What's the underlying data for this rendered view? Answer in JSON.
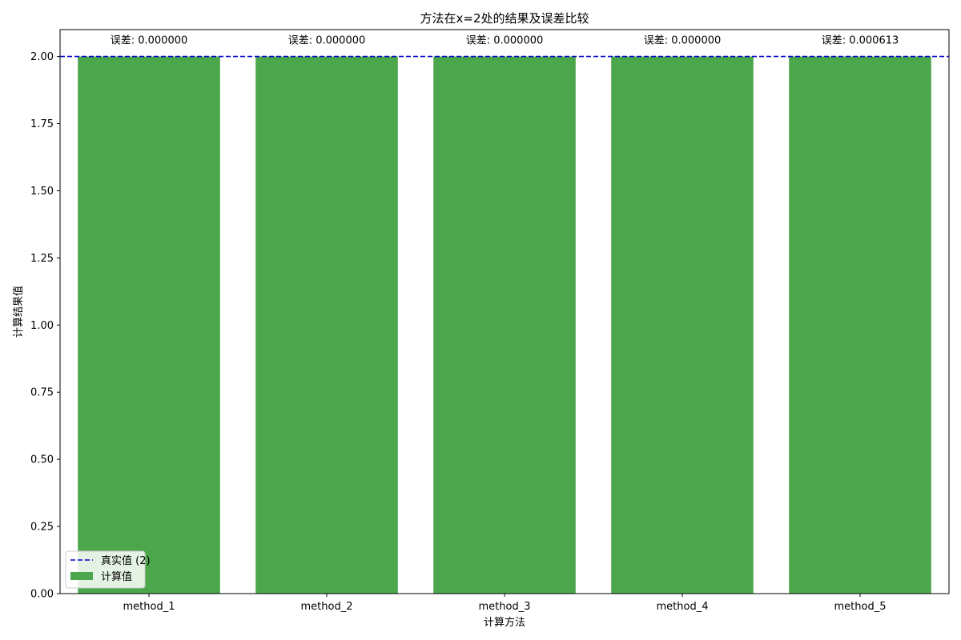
{
  "chart_data": {
    "type": "bar",
    "title": "方法在x=2处的结果及误差比较",
    "xlabel": "计算方法",
    "ylabel": "计算结果值",
    "categories": [
      "method_1",
      "method_2",
      "method_3",
      "method_4",
      "method_5"
    ],
    "values": [
      2.0,
      2.0,
      2.0,
      2.0,
      2.0
    ],
    "data_labels": [
      "误差: 0.000000",
      "误差: 0.000000",
      "误差: 0.000000",
      "误差: 0.000000",
      "误差: 0.000613"
    ],
    "ylim": [
      0,
      2.1
    ],
    "yticks": [
      "0.00",
      "0.25",
      "0.50",
      "0.75",
      "1.00",
      "1.25",
      "1.50",
      "1.75",
      "2.00"
    ],
    "reference_line": {
      "value": 2,
      "label": "真实值 (2)",
      "color": "#0000cc",
      "style": "dashed"
    },
    "bar_color": "#4ca64c",
    "legend": {
      "placement": "lower-left",
      "entries": [
        "真实值 (2)",
        "计算值"
      ]
    },
    "grid": false
  }
}
